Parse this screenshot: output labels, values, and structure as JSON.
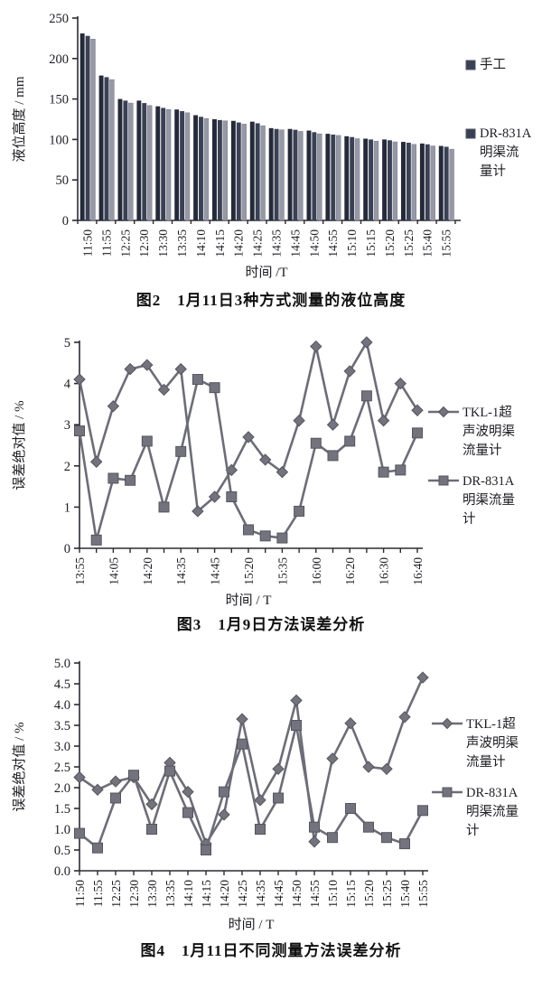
{
  "colors": {
    "axis": "#2b2b33",
    "text": "#1c1c22",
    "line": "#6d6d78",
    "marker_fill": "#73737e",
    "marker_stroke": "#55555f",
    "bars": [
      "#252a3a",
      "#3b4154",
      "#9698a6"
    ]
  },
  "chart_data": [
    {
      "type": "bar",
      "title": "图2　1月11日3种方式测量的液位高度",
      "xlabel": "时间 /T",
      "ylabel": "液位高度 / mm",
      "ylim": [
        0,
        250
      ],
      "ytick_values": [
        0,
        50,
        100,
        150,
        200,
        250
      ],
      "ytick_labels": [
        "0",
        "50",
        "100",
        "150",
        "200",
        "250"
      ],
      "grid": false,
      "legend_position": "right",
      "categories": [
        "11:50",
        "11:55",
        "12:25",
        "12:30",
        "13:30",
        "13:35",
        "14:10",
        "14:15",
        "14:20",
        "14:25",
        "14:35",
        "14:45",
        "14:50",
        "14:55",
        "15:10",
        "15:15",
        "15:20",
        "15:25",
        "15:40",
        "15:55"
      ],
      "legend": [
        {
          "label": "手工",
          "label_lines": [
            "手工"
          ]
        },
        {
          "label": "DR-831A明渠流量计",
          "label_lines": [
            "DR-831A",
            "明渠流",
            "量计"
          ]
        }
      ],
      "series": [
        {
          "name": "手工",
          "values": [
            231,
            179,
            150,
            148,
            141,
            137,
            130,
            125,
            123,
            122,
            114,
            113,
            111,
            107,
            104,
            101,
            100,
            97,
            95,
            92
          ]
        },
        {
          "name": "",
          "values": [
            228,
            177,
            148,
            145,
            139,
            135,
            128,
            124,
            121,
            120,
            113,
            112,
            109,
            106,
            103,
            100,
            99,
            96,
            94,
            91
          ]
        },
        {
          "name": "DR-831A明渠流量计",
          "values": [
            224,
            174,
            145,
            142,
            137,
            133,
            126,
            123,
            119,
            117,
            112,
            110,
            107,
            105,
            101,
            98,
            97,
            94,
            92,
            88
          ]
        }
      ]
    },
    {
      "type": "line",
      "title": "图3　1月9日方法误差分析",
      "xlabel": "时间 / T",
      "ylabel": "误差绝对值 / %",
      "ylim": [
        0,
        5
      ],
      "ytick_values": [
        0,
        1,
        2,
        3,
        4,
        5
      ],
      "ytick_labels": [
        "0",
        "1",
        "2",
        "3",
        "4",
        "5"
      ],
      "grid": false,
      "legend_position": "right",
      "x_tick_labels": [
        "13:55",
        "",
        "14:05",
        "",
        "14:20",
        "",
        "14:35",
        "",
        "14:45",
        "",
        "15:20",
        "",
        "15:35",
        "",
        "16:00",
        "",
        "16:20",
        "",
        "16:30",
        "",
        "16:40"
      ],
      "legend": [
        {
          "label": "TKL-1超声波明渠流量计",
          "marker": "diamond",
          "label_lines": [
            "TKL-1超",
            "声波明渠",
            "流量计"
          ]
        },
        {
          "label": "DR-831A明渠流量计",
          "marker": "square",
          "label_lines": [
            "DR-831A",
            "明渠流量",
            "计"
          ]
        }
      ],
      "series": [
        {
          "name": "TKL-1超声波明渠流量计",
          "marker": "diamond",
          "values": [
            4.1,
            2.1,
            3.45,
            4.35,
            4.45,
            3.85,
            4.35,
            0.9,
            1.25,
            1.9,
            2.7,
            2.15,
            1.85,
            3.1,
            4.9,
            3.0,
            4.3,
            5.0,
            3.1,
            4.0,
            3.35
          ]
        },
        {
          "name": "DR-831A明渠流量计",
          "marker": "square",
          "values": [
            2.85,
            0.2,
            1.7,
            1.65,
            2.6,
            1.0,
            2.35,
            4.1,
            3.9,
            1.25,
            0.45,
            0.3,
            0.25,
            0.9,
            2.55,
            2.25,
            2.6,
            3.7,
            1.85,
            1.9,
            2.8
          ]
        }
      ]
    },
    {
      "type": "line",
      "title": "图4　1月11日不同测量方法误差分析",
      "xlabel": "时间 / T",
      "ylabel": "误差绝对值 / %",
      "ylim": [
        0,
        5
      ],
      "ytick_values": [
        0,
        0.5,
        1,
        1.5,
        2,
        2.5,
        3,
        3.5,
        4,
        4.5,
        5
      ],
      "ytick_labels": [
        "0.0",
        "0.5",
        "1.0",
        "1.5",
        "2.0",
        "2.5",
        "3.0",
        "3.5",
        "4.0",
        "4.5",
        "5.0"
      ],
      "grid": false,
      "legend_position": "right",
      "x_tick_labels": [
        "11:50",
        "11:55",
        "12:25",
        "12:30",
        "13:30",
        "13:35",
        "14:10",
        "14:15",
        "14:20",
        "14:25",
        "14:35",
        "14:45",
        "14:50",
        "14:55",
        "15:10",
        "15:15",
        "15:20",
        "15:25",
        "15:40",
        "15:55"
      ],
      "legend": [
        {
          "label": "TKL-1超声波明渠流量计",
          "marker": "diamond",
          "label_lines": [
            "TKL-1超",
            "声波明渠",
            "流量计"
          ]
        },
        {
          "label": "DR-831A明渠流量计",
          "marker": "square",
          "label_lines": [
            "DR-831A",
            "明渠流量",
            "计"
          ]
        }
      ],
      "series": [
        {
          "name": "TKL-1超声波明渠流量计",
          "marker": "diamond",
          "values": [
            2.25,
            1.95,
            2.15,
            2.25,
            1.6,
            2.6,
            1.9,
            0.65,
            1.35,
            3.65,
            1.7,
            2.45,
            4.1,
            0.7,
            2.7,
            3.55,
            2.5,
            2.45,
            3.7,
            4.65
          ]
        },
        {
          "name": "DR-831A明渠流量计",
          "marker": "square",
          "values": [
            0.9,
            0.55,
            1.75,
            2.3,
            1.0,
            2.4,
            1.4,
            0.5,
            1.9,
            3.05,
            1.0,
            1.75,
            3.5,
            1.05,
            0.8,
            1.5,
            1.05,
            0.8,
            0.65,
            1.45
          ]
        }
      ]
    }
  ]
}
